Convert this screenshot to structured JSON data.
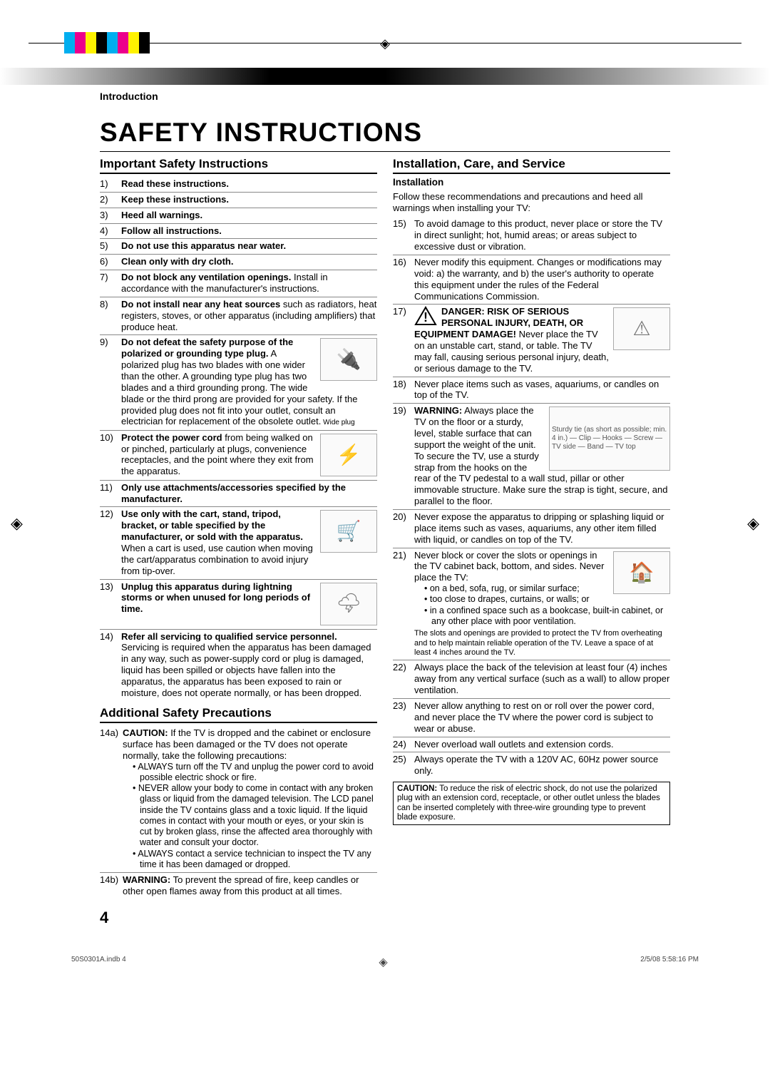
{
  "meta": {
    "crop_colors": [
      "#00aeef",
      "#ec008c",
      "#fff200",
      "#000000",
      "#00aeef",
      "#ec008c",
      "#fff200",
      "#000000"
    ],
    "footer_left": "50S0301A.indb   4",
    "footer_right": "2/5/08   5:58:16 PM"
  },
  "header": {
    "section": "Introduction"
  },
  "title": "Safety Instructions",
  "left": {
    "h2a": "Important Safety Instructions",
    "items_a": [
      {
        "n": "1)",
        "b": "Read these instructions."
      },
      {
        "n": "2)",
        "b": "Keep these instructions."
      },
      {
        "n": "3)",
        "b": "Heed all warnings."
      },
      {
        "n": "4)",
        "b": "Follow all instructions."
      },
      {
        "n": "5)",
        "b": "Do not use this apparatus near water."
      },
      {
        "n": "6)",
        "b": "Clean only with dry cloth."
      },
      {
        "n": "7)",
        "b": "Do not block any ventilation openings.",
        "t": " Install in accordance with the manufacturer's instructions."
      },
      {
        "n": "8)",
        "b": "Do not install near any heat sources",
        "t": " such as radiators, heat registers, stoves, or other apparatus (including amplifiers) that produce heat."
      },
      {
        "n": "9)",
        "b": "Do not defeat the safety purpose of the polarized or grounding type plug.",
        "t": " A polarized plug has two blades with one wider than the other. A grounding type plug has two blades and a third grounding prong. The wide blade or the third prong are provided for your safety. If the provided plug does not fit into your outlet, consult an electrician for replacement of the obsolete outlet.",
        "fig": "🔌",
        "cap": "Wide plug"
      },
      {
        "n": "10)",
        "b": "Protect the power cord",
        "t": " from being walked on or pinched, particularly at plugs, convenience receptacles, and the point where they exit from the apparatus.",
        "fig": "⚡"
      },
      {
        "n": "11)",
        "b": "Only use attachments/accessories specified by the manufacturer."
      },
      {
        "n": "12)",
        "b": "Use only with the cart, stand, tripod, bracket, or table specified by the manufacturer, or sold with the apparatus.",
        "t": " When a cart is used, use caution when moving the cart/apparatus combination to avoid injury from tip-over.",
        "fig": "🛒"
      },
      {
        "n": "13)",
        "b": "Unplug this apparatus during lightning storms or when unused for long periods of time.",
        "fig": "🌩"
      },
      {
        "n": "14)",
        "b": "Refer all servicing to qualified service personnel.",
        "t": " Servicing is required when the apparatus has been damaged in any way, such as power-supply cord or plug is damaged, liquid has been spilled or objects have fallen into the apparatus, the apparatus has been exposed to rain or moisture, does not operate normally, or has been dropped."
      }
    ],
    "h2b": "Additional Safety Precautions",
    "items_b": [
      {
        "n": "14a)",
        "b": "CAUTION:",
        "t": " If the TV is dropped and the cabinet or enclosure surface has been damaged or the TV does not operate normally, take the following precautions:",
        "bul": [
          "ALWAYS turn off the TV and unplug the power cord to avoid possible electric shock or fire.",
          "NEVER allow your body to come in contact with any broken glass or liquid from the damaged television. The LCD panel inside the TV contains glass and a toxic liquid. If the liquid comes in contact with your mouth or eyes, or your skin is cut by broken glass, rinse the affected area thoroughly with water and consult your doctor.",
          "ALWAYS contact a service technician to inspect the TV any time it has been damaged or dropped."
        ]
      },
      {
        "n": "14b)",
        "b": "WARNING:",
        "t": " To prevent the spread of fire, keep candles or other open flames away from this product at all times."
      }
    ]
  },
  "right": {
    "h2": "Installation, Care, and Service",
    "h3": "Installation",
    "lead": "Follow these recommendations and precautions and heed all warnings when installing your TV:",
    "items": [
      {
        "n": "15)",
        "t": "To avoid damage to this product, never place or store the TV in direct sunlight; hot, humid areas; or areas subject to excessive dust or vibration."
      },
      {
        "n": "16)",
        "t": "Never modify this equipment. Changes or modifications may void: a) the warranty, and b) the user's authority to operate this equipment under the rules of the Federal Communications Commission."
      },
      {
        "n": "17)",
        "warn": true,
        "b": "DANGER: RISK OF SERIOUS PERSONAL INJURY, DEATH, OR EQUIPMENT DAMAGE!",
        "t": " Never place the TV on an unstable cart, stand, or table. The TV may fall, causing serious personal injury, death, or serious damage to the TV.",
        "fig": "⚠"
      },
      {
        "n": "18)",
        "t": "Never place items such as vases, aquariums, or candles on top of the TV."
      },
      {
        "n": "19)",
        "b": "WARNING:",
        "t": " Always place the TV on the floor or a sturdy, level, stable surface that can support the weight of the unit. To secure the TV, use a sturdy strap from the hooks on the rear of the TV pedestal to a wall stud, pillar or other immovable structure. Make sure the strap is tight, secure, and parallel to the floor.",
        "figwide": true,
        "figlabels": "Sturdy tie (as short as possible; min. 4 in.) — Clip — Hooks — Screw — TV side — Band — TV top"
      },
      {
        "n": "20)",
        "t": "Never expose the apparatus to dripping or splashing liquid or place items such as vases, aquariums, any other item filled with liquid, or candles on top of the TV."
      },
      {
        "n": "21)",
        "t": "Never block or cover the slots or openings in the TV cabinet back, bottom, and sides. Never place the TV:",
        "bul": [
          "on a bed, sofa, rug, or similar surface;",
          "too close to drapes, curtains, or walls; or",
          "in a confined space such as a bookcase, built-in cabinet, or any other place with poor ventilation."
        ],
        "after": "The slots and openings are provided to protect the TV from overheating and to help maintain reliable operation of the TV. Leave a space of at least 4 inches around the TV.",
        "fig": "🏠"
      },
      {
        "n": "22)",
        "t": "Always place the back of the television at least four (4) inches away from any vertical surface (such as a wall) to allow proper ventilation."
      },
      {
        "n": "23)",
        "t": "Never allow anything to rest on or roll over the power cord, and never place the TV where the power cord is subject to wear or abuse."
      },
      {
        "n": "24)",
        "t": "Never overload wall outlets and extension cords."
      },
      {
        "n": "25)",
        "t": "Always operate the TV with a 120V AC, 60Hz power source only."
      }
    ],
    "caution": "CAUTION: To reduce the risk of electric shock, do not use the polarized plug with an extension cord, receptacle, or other outlet unless the blades can be inserted completely with three-wire grounding type to prevent blade exposure."
  },
  "page_number": "4",
  "style": {
    "title_fontsize": 37,
    "h2_fontsize": 17,
    "body_fontsize": 13,
    "colors": {
      "text": "#000000",
      "bg": "#ffffff",
      "rule": "#000000",
      "fig_border": "#aaaaaa"
    }
  }
}
